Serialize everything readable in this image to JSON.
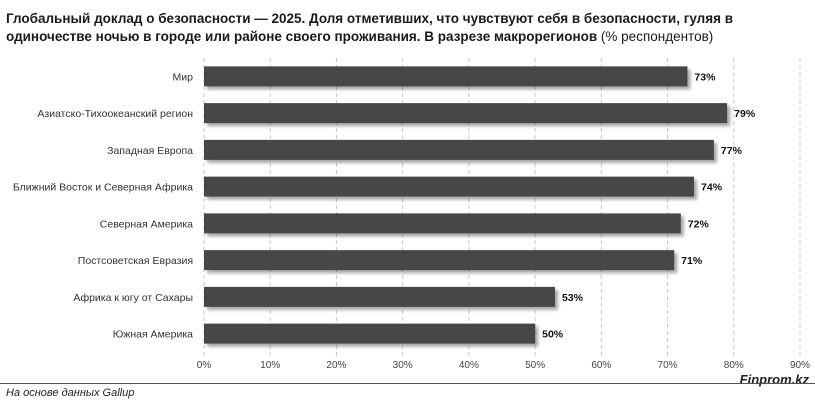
{
  "title": {
    "bold": "Глобальный доклад о безопасности — 2025. Доля отметивших, что чувствуют себя в безопасности, гуляя в одиночестве ночью в городе или районе своего проживания. В разрезе макрорегионов",
    "normal": " (% респондентов)"
  },
  "chart_data": {
    "type": "bar",
    "orientation": "horizontal",
    "categories": [
      "Мир",
      "Азиатско-Тихоокеанский регион",
      "Западная Европа",
      "Ближний Восток и Северная Африка",
      "Северная Америка",
      "Постсоветская Евразия",
      "Африка к югу от Сахары",
      "Южная Америка"
    ],
    "values": [
      73,
      79,
      77,
      74,
      72,
      71,
      53,
      50
    ],
    "value_labels": [
      "73%",
      "79%",
      "77%",
      "74%",
      "72%",
      "71%",
      "53%",
      "50%"
    ],
    "xlim": [
      0,
      90
    ],
    "xticks": [
      "0%",
      "10%",
      "20%",
      "30%",
      "40%",
      "50%",
      "60%",
      "70%",
      "80%",
      "90%"
    ],
    "grid": "vertical-dashed",
    "bar_color": "#474747"
  },
  "footer": {
    "source": "На основе данных Gallup",
    "brand": "Finprom.kz"
  }
}
